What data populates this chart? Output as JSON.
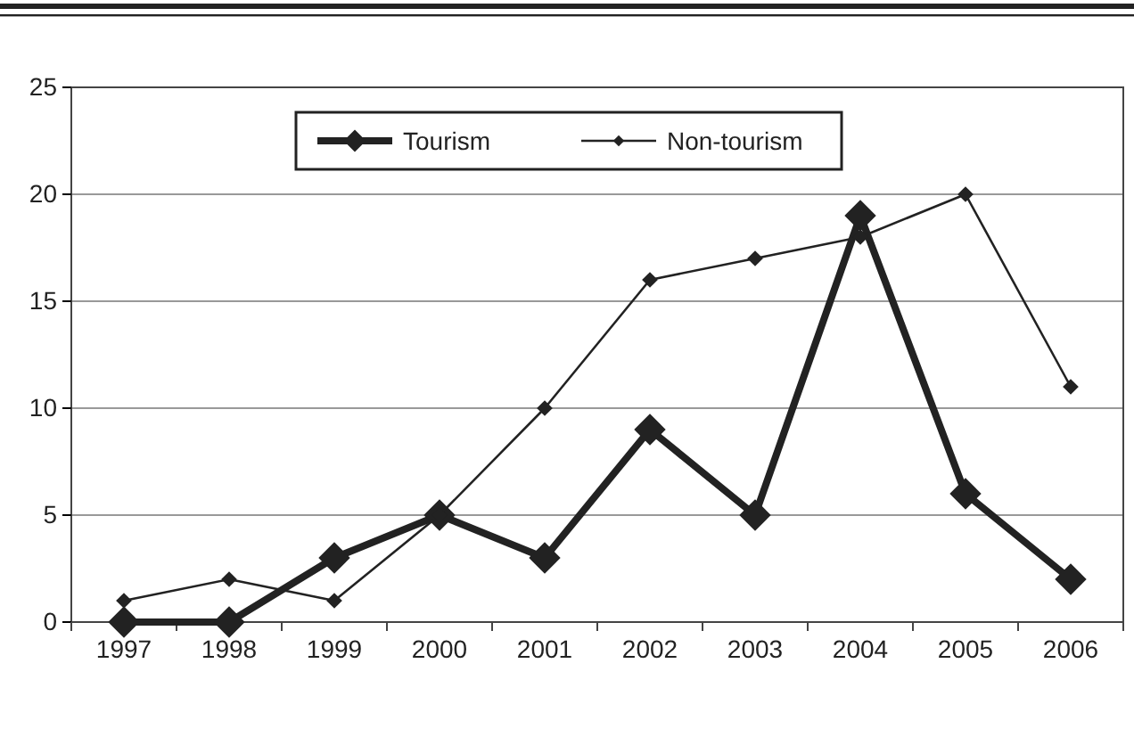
{
  "chart_data": {
    "type": "line",
    "categories": [
      "1997",
      "1998",
      "1999",
      "2000",
      "2001",
      "2002",
      "2003",
      "2004",
      "2005",
      "2006"
    ],
    "series": [
      {
        "name": "Tourism",
        "color": "#222222",
        "values": [
          0,
          0,
          3,
          5,
          3,
          9,
          5,
          19,
          6,
          2
        ]
      },
      {
        "name": "Non-tourism",
        "color": "#222222",
        "values": [
          1,
          2,
          1,
          5,
          10,
          16,
          17,
          18,
          20,
          11
        ]
      }
    ],
    "ylim": [
      0,
      25
    ],
    "yticks": [
      0,
      5,
      10,
      15,
      20,
      25
    ],
    "grid": "y",
    "legend": "top",
    "marker": "diamond",
    "line_style": "solid"
  }
}
